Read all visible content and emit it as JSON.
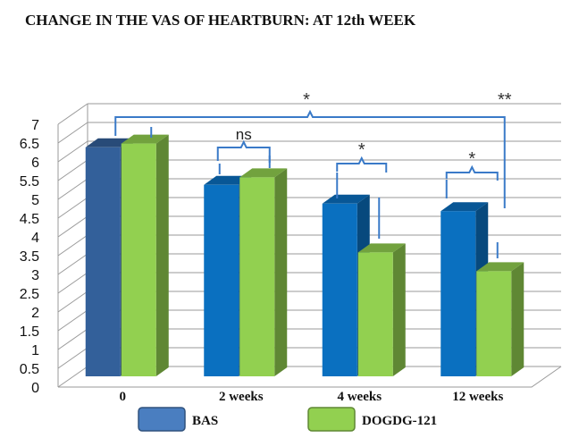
{
  "chart_data": {
    "type": "bar",
    "title": "CHANGE IN THE VAS OF HEARTBURN: AT 12th WEEK",
    "xlabel": "",
    "ylabel": "",
    "categories": [
      "0",
      "2 weeks",
      "4 weeks",
      "12 weeks"
    ],
    "series": [
      {
        "name": "BAS",
        "values": [
          6.1,
          5.1,
          4.6,
          4.4
        ],
        "color": "#0a70c0",
        "legend_color": "#4a7ec0"
      },
      {
        "name": "DOGDG-121",
        "values": [
          6.2,
          5.3,
          3.3,
          2.8
        ],
        "color": "#92d050"
      }
    ],
    "first_bar_color": "#33609a",
    "ylim": [
      0,
      7
    ],
    "yticks": [
      "0",
      "0.5",
      "1",
      "1.5",
      "2",
      "2.5",
      "3",
      "3.5",
      "4",
      "4.5",
      "5",
      "5.5",
      "6",
      "6.5",
      "7"
    ],
    "grid": true,
    "bar_style": "3d",
    "legend_position": "bottom",
    "annotations": {
      "bracket_2_weeks": "ns",
      "bracket_4_weeks": "*",
      "bracket_12_weeks": "*",
      "bracket_overall": "*",
      "bracket_overall_end": "**",
      "bracket_color": "#3a7ac8"
    }
  }
}
